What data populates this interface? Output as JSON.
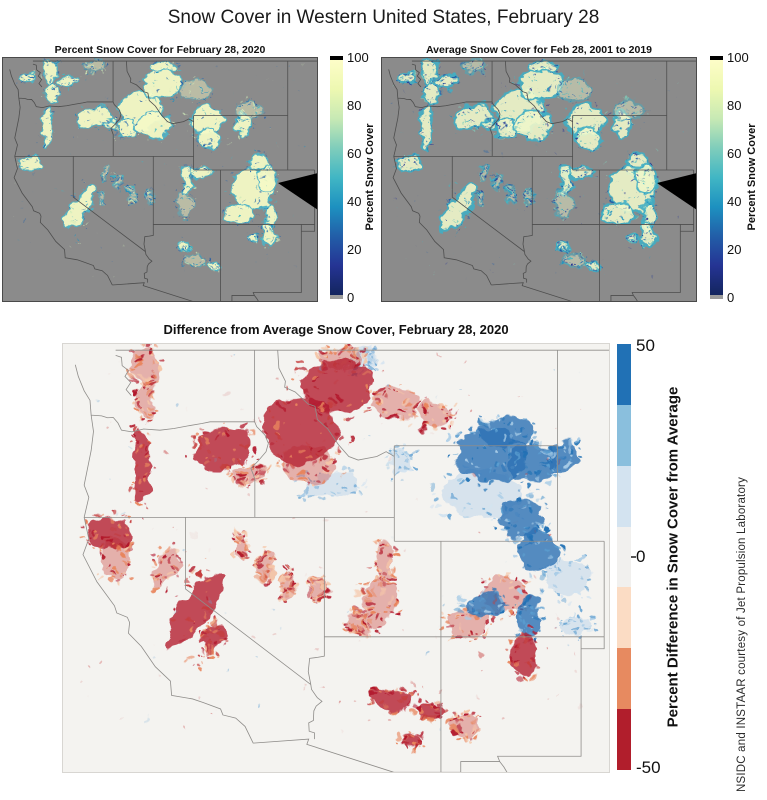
{
  "figure_title": "Snow Cover in Western United States, February 28",
  "panels": {
    "snow_2020": {
      "title": "Percent Snow Cover for February 28, 2020"
    },
    "snow_average": {
      "title": "Average Snow Cover for Feb 28, 2001 to 2019"
    },
    "difference": {
      "title": "Difference from Average Snow Cover, February 28, 2020"
    }
  },
  "snow_colorbar": {
    "label": "Percent Snow Cover",
    "ticks": [
      "100",
      "80",
      "60",
      "40",
      "20",
      "0"
    ],
    "range": [
      0,
      100
    ],
    "gradient": [
      "#fdfdc8",
      "#edf8b1",
      "#c7e9b4",
      "#7fcdbb",
      "#41b6c4",
      "#1d91c0",
      "#225ea8",
      "#253494",
      "#13255e"
    ],
    "over_color": "#000000",
    "under_color": "#9b9b9b"
  },
  "diff_colorbar": {
    "label": "Percent Difference in Snow Cover from Average",
    "ticks": [
      "50",
      "0",
      "-50"
    ],
    "range": [
      -50,
      50
    ],
    "segments": [
      "#2171b5",
      "#8abfdd",
      "#d3e3f0",
      "#f1f0ee",
      "#fbdcc4",
      "#e78a60",
      "#b11e2c"
    ]
  },
  "attribution": "NSIDC and INSTAAR courtesy of Jet Propulsion Laboratory"
}
